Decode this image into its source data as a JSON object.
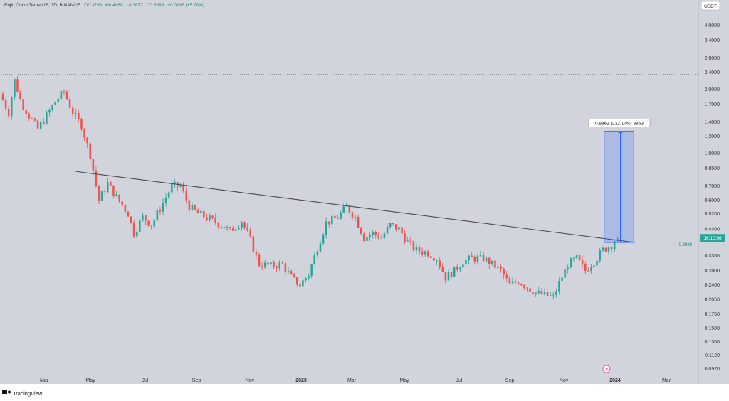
{
  "header": {
    "symbol": "Enjin Coin / TetherUS, 3D, BINANCE",
    "open": "O0.3793",
    "high": "H0.4068",
    "low": "L0.3677",
    "close": "C0.3989",
    "change": "+0.0197 (+5.20%)"
  },
  "currency_badge": "USDT",
  "last_price_label": "16:10:56",
  "last_price_sub": "0.3989",
  "measure_label": "0.8863 (232.17%) 8863",
  "brand": "TradingView",
  "colors": {
    "background": "#d1d4dc",
    "up": "#26a69a",
    "down": "#ef5350",
    "measure": "#2962ff",
    "trendline": "#4a4a4a"
  },
  "chart_data": {
    "type": "candlestick",
    "scale": "log",
    "ylim": [
      0.09,
      4.3
    ],
    "y_ticks": [
      "4.0000",
      "3.4000",
      "2.8000",
      "2.4000",
      "2.0000",
      "1.7000",
      "1.4000",
      "1.2000",
      "1.0000",
      "0.8500",
      "0.7000",
      "0.6000",
      "0.5200",
      "0.4400",
      "0.3300",
      "0.2800",
      "0.2400",
      "0.2050",
      "0.1750",
      "0.1500",
      "0.1300",
      "0.1120",
      "0.0970"
    ],
    "x_ticks": [
      "Mar",
      "May",
      "Jul",
      "Sep",
      "Nov",
      "2023",
      "Mar",
      "May",
      "Jul",
      "Sep",
      "Nov",
      "2024",
      "Mar"
    ],
    "price_path": [
      {
        "t": 0,
        "p": 1.9
      },
      {
        "t": 6,
        "p": 1.55
      },
      {
        "t": 10,
        "p": 2.2
      },
      {
        "t": 15,
        "p": 1.7
      },
      {
        "t": 20,
        "p": 1.5
      },
      {
        "t": 26,
        "p": 1.3
      },
      {
        "t": 32,
        "p": 1.5
      },
      {
        "t": 38,
        "p": 1.75
      },
      {
        "t": 44,
        "p": 1.95
      },
      {
        "t": 50,
        "p": 1.55
      },
      {
        "t": 56,
        "p": 1.35
      },
      {
        "t": 62,
        "p": 0.98
      },
      {
        "t": 68,
        "p": 0.6
      },
      {
        "t": 74,
        "p": 0.72
      },
      {
        "t": 80,
        "p": 0.62
      },
      {
        "t": 88,
        "p": 0.52
      },
      {
        "t": 92,
        "p": 0.42
      },
      {
        "t": 98,
        "p": 0.5
      },
      {
        "t": 104,
        "p": 0.46
      },
      {
        "t": 110,
        "p": 0.55
      },
      {
        "t": 118,
        "p": 0.7
      },
      {
        "t": 124,
        "p": 0.7
      },
      {
        "t": 130,
        "p": 0.56
      },
      {
        "t": 136,
        "p": 0.52
      },
      {
        "t": 144,
        "p": 0.49
      },
      {
        "t": 152,
        "p": 0.46
      },
      {
        "t": 158,
        "p": 0.43
      },
      {
        "t": 166,
        "p": 0.48
      },
      {
        "t": 172,
        "p": 0.39
      },
      {
        "t": 178,
        "p": 0.3
      },
      {
        "t": 186,
        "p": 0.295
      },
      {
        "t": 194,
        "p": 0.3
      },
      {
        "t": 200,
        "p": 0.26
      },
      {
        "t": 206,
        "p": 0.24
      },
      {
        "t": 212,
        "p": 0.27
      },
      {
        "t": 218,
        "p": 0.36
      },
      {
        "t": 224,
        "p": 0.47
      },
      {
        "t": 232,
        "p": 0.5
      },
      {
        "t": 238,
        "p": 0.56
      },
      {
        "t": 244,
        "p": 0.5
      },
      {
        "t": 250,
        "p": 0.4
      },
      {
        "t": 256,
        "p": 0.42
      },
      {
        "t": 262,
        "p": 0.4
      },
      {
        "t": 268,
        "p": 0.46
      },
      {
        "t": 274,
        "p": 0.44
      },
      {
        "t": 280,
        "p": 0.38
      },
      {
        "t": 286,
        "p": 0.35
      },
      {
        "t": 294,
        "p": 0.34
      },
      {
        "t": 300,
        "p": 0.32
      },
      {
        "t": 306,
        "p": 0.26
      },
      {
        "t": 312,
        "p": 0.28
      },
      {
        "t": 318,
        "p": 0.31
      },
      {
        "t": 324,
        "p": 0.32
      },
      {
        "t": 332,
        "p": 0.32
      },
      {
        "t": 338,
        "p": 0.3
      },
      {
        "t": 344,
        "p": 0.28
      },
      {
        "t": 350,
        "p": 0.24
      },
      {
        "t": 356,
        "p": 0.25
      },
      {
        "t": 362,
        "p": 0.235
      },
      {
        "t": 368,
        "p": 0.22
      },
      {
        "t": 374,
        "p": 0.215
      },
      {
        "t": 380,
        "p": 0.21
      },
      {
        "t": 384,
        "p": 0.245
      },
      {
        "t": 390,
        "p": 0.3
      },
      {
        "t": 396,
        "p": 0.32
      },
      {
        "t": 402,
        "p": 0.28
      },
      {
        "t": 408,
        "p": 0.31
      },
      {
        "t": 414,
        "p": 0.35
      },
      {
        "t": 420,
        "p": 0.37
      },
      {
        "t": 423,
        "p": 0.3989
      }
    ],
    "trendline": [
      {
        "t": 50,
        "p": 0.82
      },
      {
        "t": 434,
        "p": 0.38
      }
    ],
    "measure": {
      "from": 0.38,
      "to": 1.27,
      "label": "0.8863 (232.17%) 8863"
    },
    "ref_levels": [
      2.35,
      0.206
    ]
  }
}
